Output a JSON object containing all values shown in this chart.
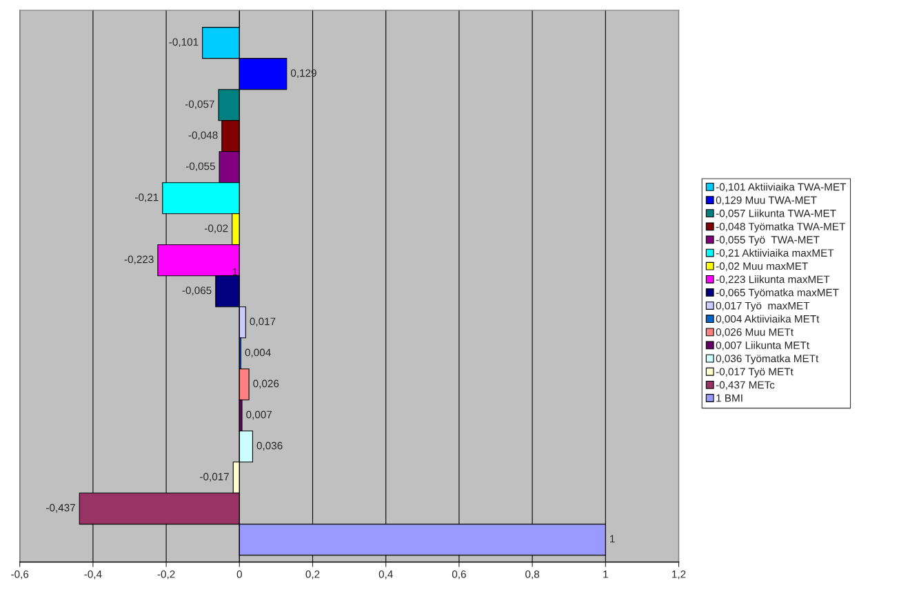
{
  "chart_data": {
    "type": "bar",
    "orientation": "horizontal",
    "categories": [
      null,
      null,
      null,
      null,
      null,
      null,
      null,
      null,
      null,
      null,
      null,
      null,
      null,
      null,
      null,
      null,
      null
    ],
    "series": [
      {
        "name": "-0,101 Aktiiviaika TWA-MET",
        "color": "#00ccff",
        "values": [
          -0.101,
          null,
          null,
          null,
          null,
          null,
          null,
          null,
          null,
          null,
          null,
          null,
          null,
          null,
          null,
          null,
          null
        ],
        "value_labels": [
          "-0,101",
          null,
          null,
          null,
          null,
          null,
          null,
          null,
          null,
          null,
          null,
          null,
          null,
          null,
          null,
          null,
          null
        ]
      },
      {
        "name": "0,129 Muu TWA-MET",
        "color": "#0000ff",
        "values": [
          null,
          0.129,
          null,
          null,
          null,
          null,
          null,
          null,
          null,
          null,
          null,
          null,
          null,
          null,
          null,
          null,
          null
        ],
        "value_labels": [
          null,
          "0,129",
          null,
          null,
          null,
          null,
          null,
          null,
          null,
          null,
          null,
          null,
          null,
          null,
          null,
          null,
          null
        ]
      },
      {
        "name": "-0,057 Liikunta TWA-MET",
        "color": "#008080",
        "values": [
          null,
          null,
          -0.057,
          null,
          null,
          null,
          null,
          null,
          null,
          null,
          null,
          null,
          null,
          null,
          null,
          null,
          null
        ],
        "value_labels": [
          null,
          null,
          "-0,057",
          null,
          null,
          null,
          null,
          null,
          null,
          null,
          null,
          null,
          null,
          null,
          null,
          null,
          null
        ]
      },
      {
        "name": "-0,048 Työmatka TWA-MET",
        "color": "#800000",
        "values": [
          null,
          null,
          null,
          -0.048,
          null,
          null,
          null,
          null,
          null,
          null,
          null,
          null,
          null,
          null,
          null,
          null,
          null
        ],
        "value_labels": [
          null,
          null,
          null,
          "-0,048",
          null,
          null,
          null,
          null,
          null,
          null,
          null,
          null,
          null,
          null,
          null,
          null,
          null
        ]
      },
      {
        "name": "-0,055 Työ  TWA-MET",
        "color": "#800080",
        "values": [
          null,
          null,
          null,
          null,
          -0.055,
          null,
          null,
          null,
          null,
          null,
          null,
          null,
          null,
          null,
          null,
          null,
          null
        ],
        "value_labels": [
          null,
          null,
          null,
          null,
          "-0,055",
          null,
          null,
          null,
          null,
          null,
          null,
          null,
          null,
          null,
          null,
          null,
          null
        ]
      },
      {
        "name": "-0,21 Aktiiviaika maxMET",
        "color": "#00ffff",
        "values": [
          null,
          null,
          null,
          null,
          null,
          -0.21,
          null,
          null,
          null,
          null,
          null,
          null,
          null,
          null,
          null,
          null,
          null
        ],
        "value_labels": [
          null,
          null,
          null,
          null,
          null,
          "-0,21",
          null,
          null,
          null,
          null,
          null,
          null,
          null,
          null,
          null,
          null,
          null
        ]
      },
      {
        "name": "-0,02 Muu maxMET",
        "color": "#ffff00",
        "values": [
          null,
          null,
          null,
          null,
          null,
          null,
          -0.02,
          null,
          null,
          null,
          null,
          null,
          null,
          null,
          null,
          null,
          null
        ],
        "value_labels": [
          null,
          null,
          null,
          null,
          null,
          null,
          "-0,02",
          null,
          null,
          null,
          null,
          null,
          null,
          null,
          null,
          null,
          null
        ]
      },
      {
        "name": "-0,223 Liikunta maxMET",
        "color": "#ff00ff",
        "values": [
          null,
          null,
          null,
          null,
          null,
          null,
          null,
          -0.223,
          null,
          null,
          null,
          null,
          null,
          null,
          null,
          null,
          null
        ],
        "value_labels": [
          null,
          null,
          null,
          null,
          null,
          null,
          null,
          "-0,223",
          null,
          null,
          null,
          null,
          null,
          null,
          null,
          null,
          null
        ]
      },
      {
        "name": "-0,065 Työmatka maxMET",
        "color": "#000080",
        "values": [
          null,
          null,
          null,
          null,
          null,
          null,
          null,
          null,
          -0.065,
          null,
          null,
          null,
          null,
          null,
          null,
          null,
          null
        ],
        "value_labels": [
          null,
          null,
          null,
          null,
          null,
          null,
          null,
          null,
          "-0,065",
          null,
          null,
          null,
          null,
          null,
          null,
          null,
          null
        ]
      },
      {
        "name": "0,017 Työ  maxMET",
        "color": "#ccccff",
        "values": [
          null,
          null,
          null,
          null,
          null,
          null,
          null,
          null,
          null,
          0.017,
          null,
          null,
          null,
          null,
          null,
          null,
          null
        ],
        "value_labels": [
          null,
          null,
          null,
          null,
          null,
          null,
          null,
          null,
          null,
          "0,017",
          null,
          null,
          null,
          null,
          null,
          null,
          null
        ]
      },
      {
        "name": "0,004 Aktiiviaika METt",
        "color": "#0066cc",
        "values": [
          null,
          null,
          null,
          null,
          null,
          null,
          null,
          null,
          null,
          null,
          0.004,
          null,
          null,
          null,
          null,
          null,
          null
        ],
        "value_labels": [
          null,
          null,
          null,
          null,
          null,
          null,
          null,
          null,
          null,
          null,
          "0,004",
          null,
          null,
          null,
          null,
          null,
          null
        ]
      },
      {
        "name": "0,026 Muu METt",
        "color": "#ff8080",
        "values": [
          null,
          null,
          null,
          null,
          null,
          null,
          null,
          null,
          null,
          null,
          null,
          0.026,
          null,
          null,
          null,
          null,
          null
        ],
        "value_labels": [
          null,
          null,
          null,
          null,
          null,
          null,
          null,
          null,
          null,
          null,
          null,
          "0,026",
          null,
          null,
          null,
          null,
          null
        ]
      },
      {
        "name": "0,007 Liikunta METt",
        "color": "#660066",
        "values": [
          null,
          null,
          null,
          null,
          null,
          null,
          null,
          null,
          null,
          null,
          null,
          null,
          0.007,
          null,
          null,
          null,
          null
        ],
        "value_labels": [
          null,
          null,
          null,
          null,
          null,
          null,
          null,
          null,
          null,
          null,
          null,
          null,
          "0,007",
          null,
          null,
          null,
          null
        ]
      },
      {
        "name": "0,036 Työmatka METt",
        "color": "#ccffff",
        "values": [
          null,
          null,
          null,
          null,
          null,
          null,
          null,
          null,
          null,
          null,
          null,
          null,
          null,
          0.036,
          null,
          null,
          null
        ],
        "value_labels": [
          null,
          null,
          null,
          null,
          null,
          null,
          null,
          null,
          null,
          null,
          null,
          null,
          null,
          "0,036",
          null,
          null,
          null
        ]
      },
      {
        "name": "-0,017 Työ METt",
        "color": "#ffffcc",
        "values": [
          null,
          null,
          null,
          null,
          null,
          null,
          null,
          null,
          null,
          null,
          null,
          null,
          null,
          null,
          -0.017,
          null,
          null
        ],
        "value_labels": [
          null,
          null,
          null,
          null,
          null,
          null,
          null,
          null,
          null,
          null,
          null,
          null,
          null,
          null,
          "-0,017",
          null,
          null
        ]
      },
      {
        "name": "-0,437 METc",
        "color": "#993366",
        "values": [
          null,
          null,
          null,
          null,
          null,
          null,
          null,
          null,
          null,
          null,
          null,
          null,
          null,
          null,
          null,
          -0.437,
          null
        ],
        "value_labels": [
          null,
          null,
          null,
          null,
          null,
          null,
          null,
          null,
          null,
          null,
          null,
          null,
          null,
          null,
          null,
          "-0,437",
          null
        ]
      },
      {
        "name": "1 BMI",
        "color": "#9999ff",
        "values": [
          null,
          null,
          null,
          null,
          null,
          null,
          null,
          null,
          null,
          null,
          null,
          null,
          null,
          null,
          null,
          null,
          1
        ],
        "value_labels": [
          null,
          null,
          null,
          null,
          null,
          null,
          null,
          null,
          null,
          null,
          null,
          null,
          null,
          null,
          null,
          null,
          "1"
        ]
      }
    ],
    "annotations": [
      "1"
    ],
    "xlim": [
      -0.6,
      1.2
    ],
    "xticks": [
      {
        "value": -0.6,
        "label": "-0,6"
      },
      {
        "value": -0.4,
        "label": "-0,4"
      },
      {
        "value": -0.2,
        "label": "-0,2"
      },
      0,
      {
        "value": 0.2,
        "label": "0,2"
      },
      {
        "value": 0.4,
        "label": "0,4"
      },
      {
        "value": 0.6,
        "label": "0,6"
      },
      {
        "value": 0.8,
        "label": "0,8"
      },
      1,
      {
        "value": 1.2,
        "label": "1,2"
      }
    ],
    "grid": "x",
    "legend": "right"
  }
}
